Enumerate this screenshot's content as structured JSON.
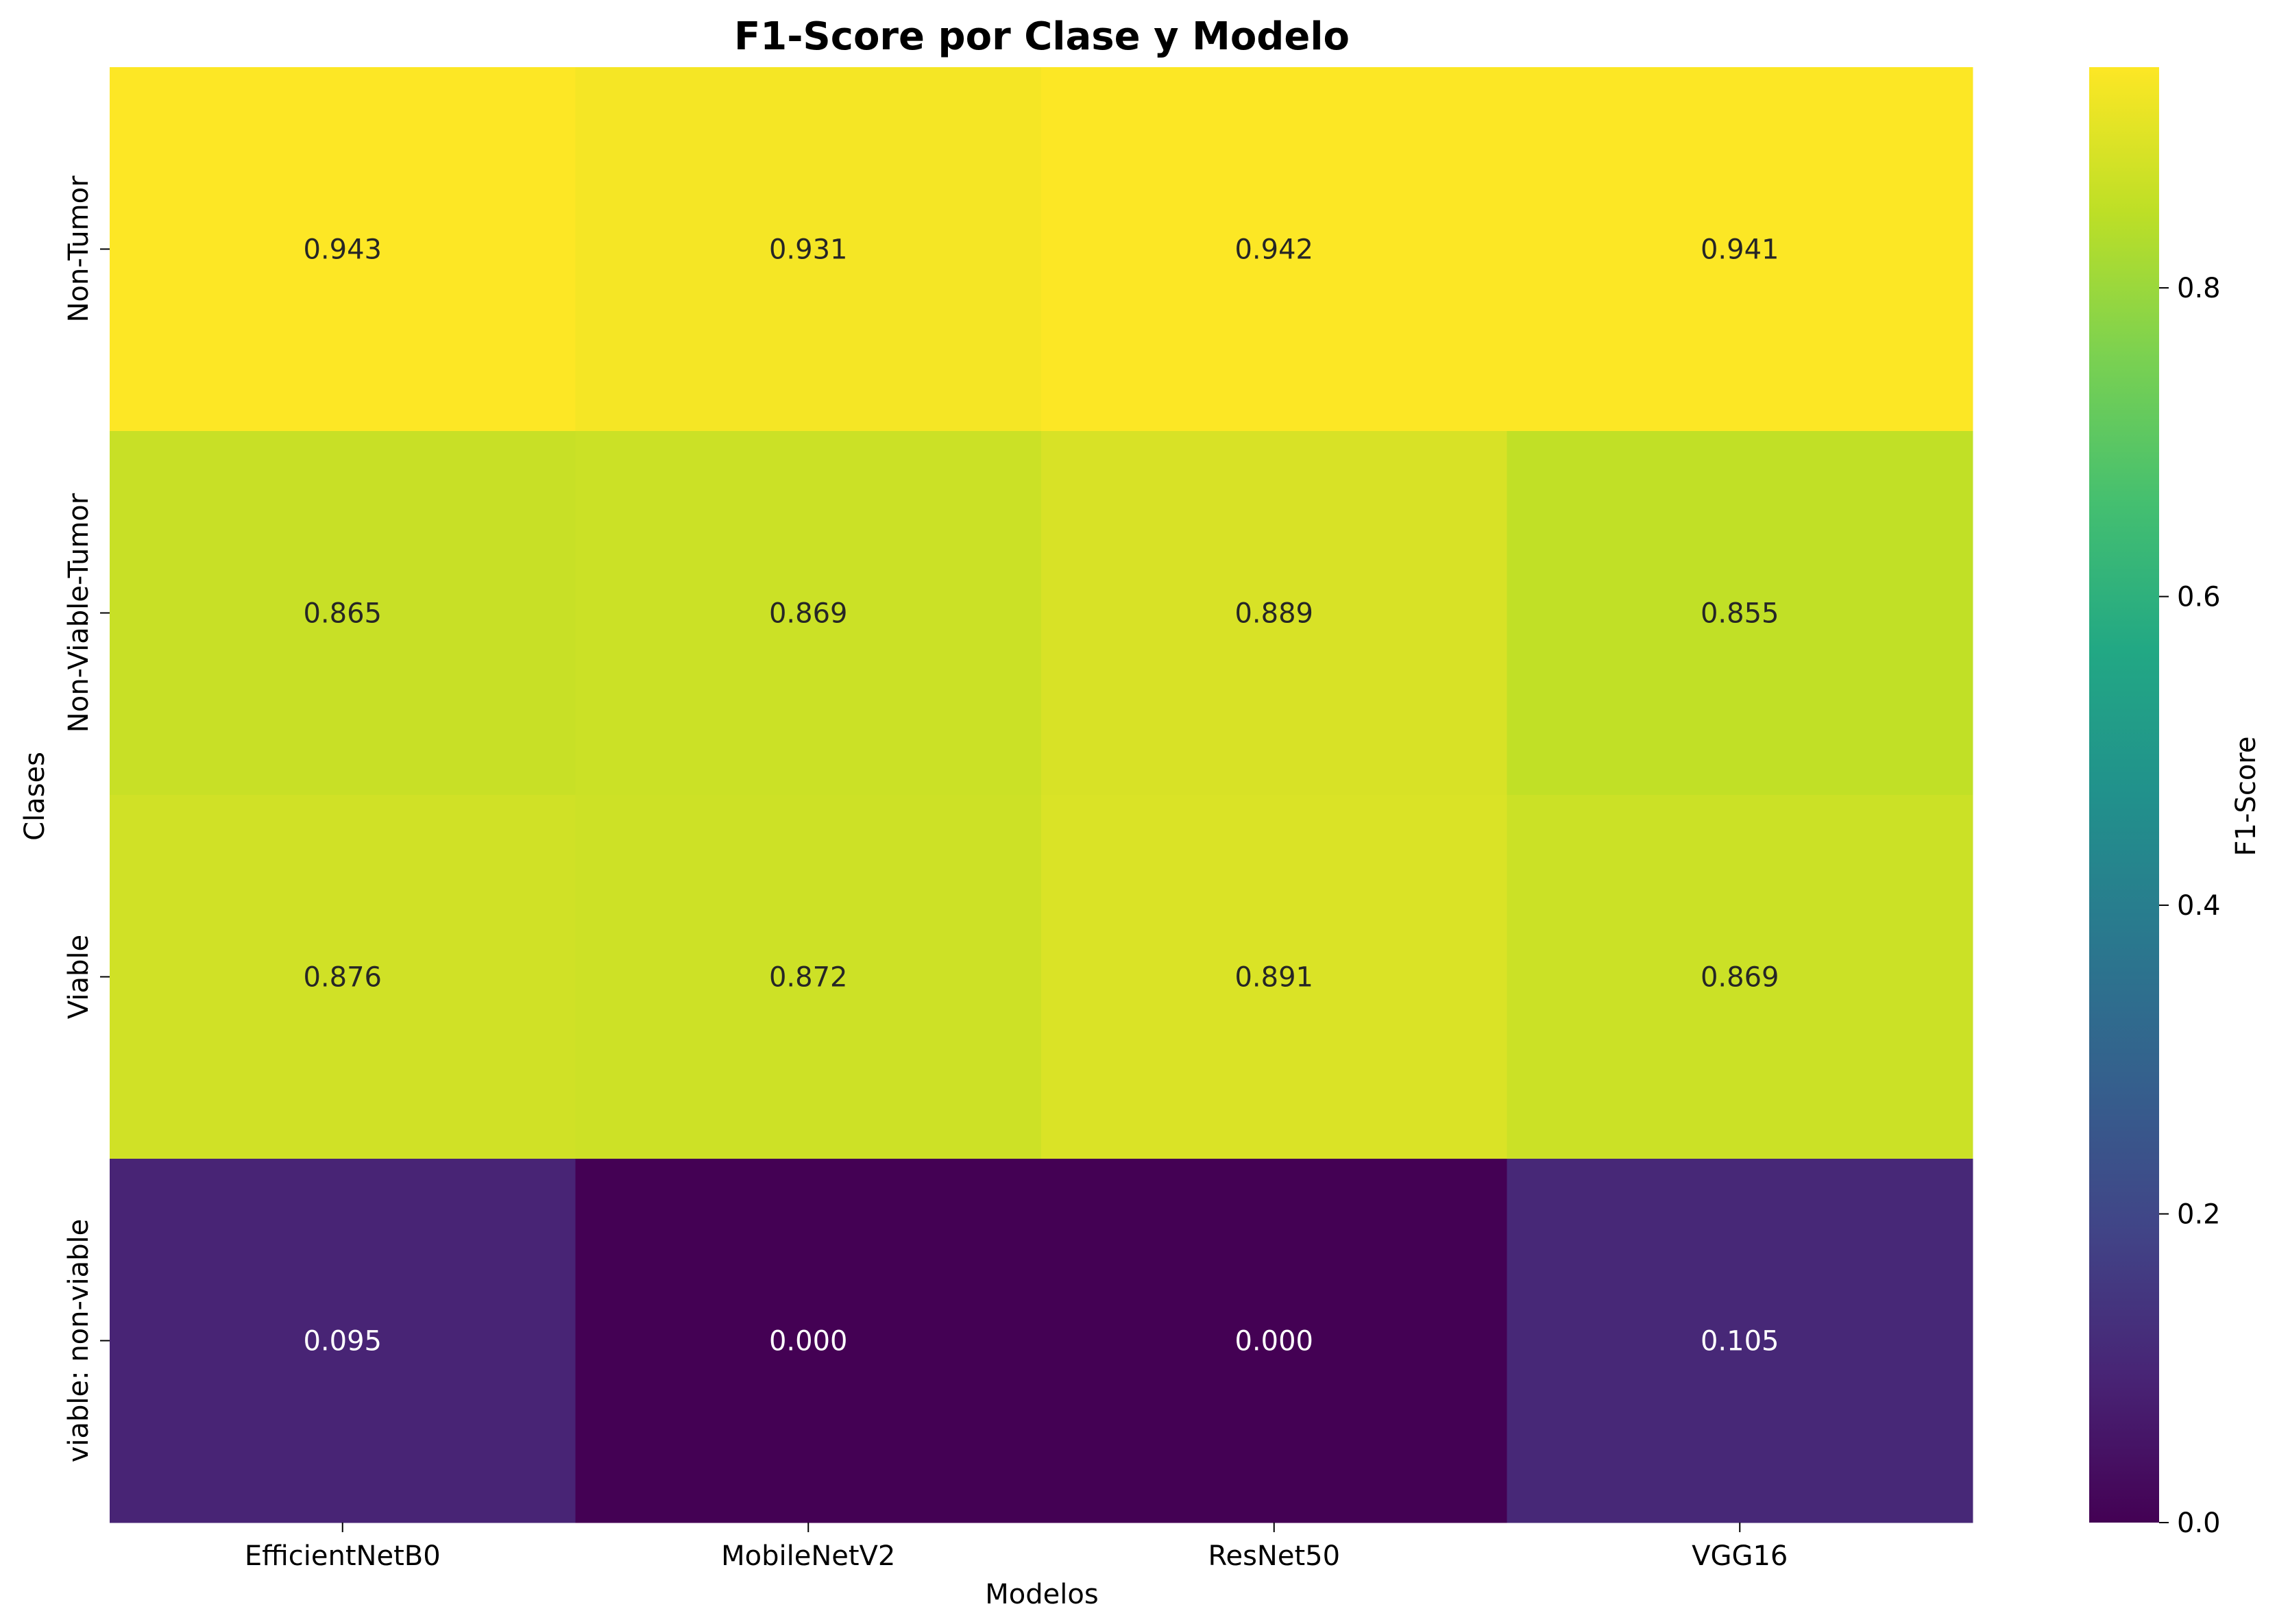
{
  "chart_data": {
    "type": "heatmap",
    "title": "F1-Score por Clase y Modelo",
    "xlabel": "Modelos",
    "ylabel": "Clases",
    "x_categories": [
      "EfficientNetB0",
      "MobileNetV2",
      "ResNet50",
      "VGG16"
    ],
    "y_categories": [
      "Non-Tumor",
      "Non-Viable-Tumor",
      "Viable",
      "viable: non-viable"
    ],
    "values": [
      [
        0.943,
        0.931,
        0.942,
        0.941
      ],
      [
        0.865,
        0.869,
        0.889,
        0.855
      ],
      [
        0.876,
        0.872,
        0.891,
        0.869
      ],
      [
        0.095,
        0.0,
        0.0,
        0.105
      ]
    ],
    "value_labels": [
      [
        "0.943",
        "0.931",
        "0.942",
        "0.941"
      ],
      [
        "0.865",
        "0.869",
        "0.889",
        "0.855"
      ],
      [
        "0.876",
        "0.872",
        "0.891",
        "0.869"
      ],
      [
        "0.095",
        "0.000",
        "0.000",
        "0.105"
      ]
    ],
    "colormap": "viridis",
    "vmin": 0.0,
    "vmax": 0.943,
    "colorbar": {
      "label": "F1-Score",
      "ticks": [
        0.0,
        0.2,
        0.4,
        0.6,
        0.8
      ],
      "tick_labels": [
        "0.0",
        "0.2",
        "0.4",
        "0.6",
        "0.8"
      ]
    },
    "grid": false
  }
}
